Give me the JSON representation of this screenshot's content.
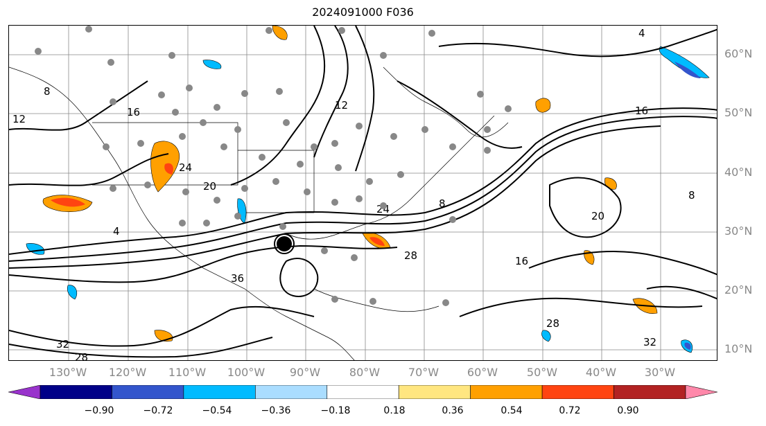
{
  "title": "2024091000 F036",
  "lat_labels": [
    "60°N",
    "50°N",
    "40°N",
    "30°N",
    "20°N",
    "10°N"
  ],
  "lon_labels": [
    "130°W",
    "120°W",
    "110°W",
    "100°W",
    "90°W",
    "80°W",
    "70°W",
    "60°W",
    "50°W",
    "40°W",
    "30°W"
  ],
  "contour_labels": [
    "8",
    "4",
    "12",
    "16",
    "20",
    "24",
    "28",
    "32",
    "36",
    "8",
    "4",
    "16",
    "20",
    "28",
    "32",
    "28",
    "16",
    "12",
    "24",
    "8"
  ],
  "colorbar": {
    "ticks": [
      "−0.90",
      "−0.72",
      "−0.54",
      "−0.36",
      "−0.18",
      "0.18",
      "0.36",
      "0.54",
      "0.72",
      "0.90"
    ],
    "colors": [
      "#9933cc",
      "#000088",
      "#3355cc",
      "#00bbff",
      "#aaddff",
      "#ffffff",
      "#ffe680",
      "#ffa000",
      "#ff4411",
      "#b22222",
      "#ff88aa"
    ]
  },
  "colors": {
    "contour": "#000000",
    "station_dot": "#888888",
    "grid": "#888888",
    "positive_shading": "#ffa000",
    "negative_shading": "#00bbff"
  }
}
